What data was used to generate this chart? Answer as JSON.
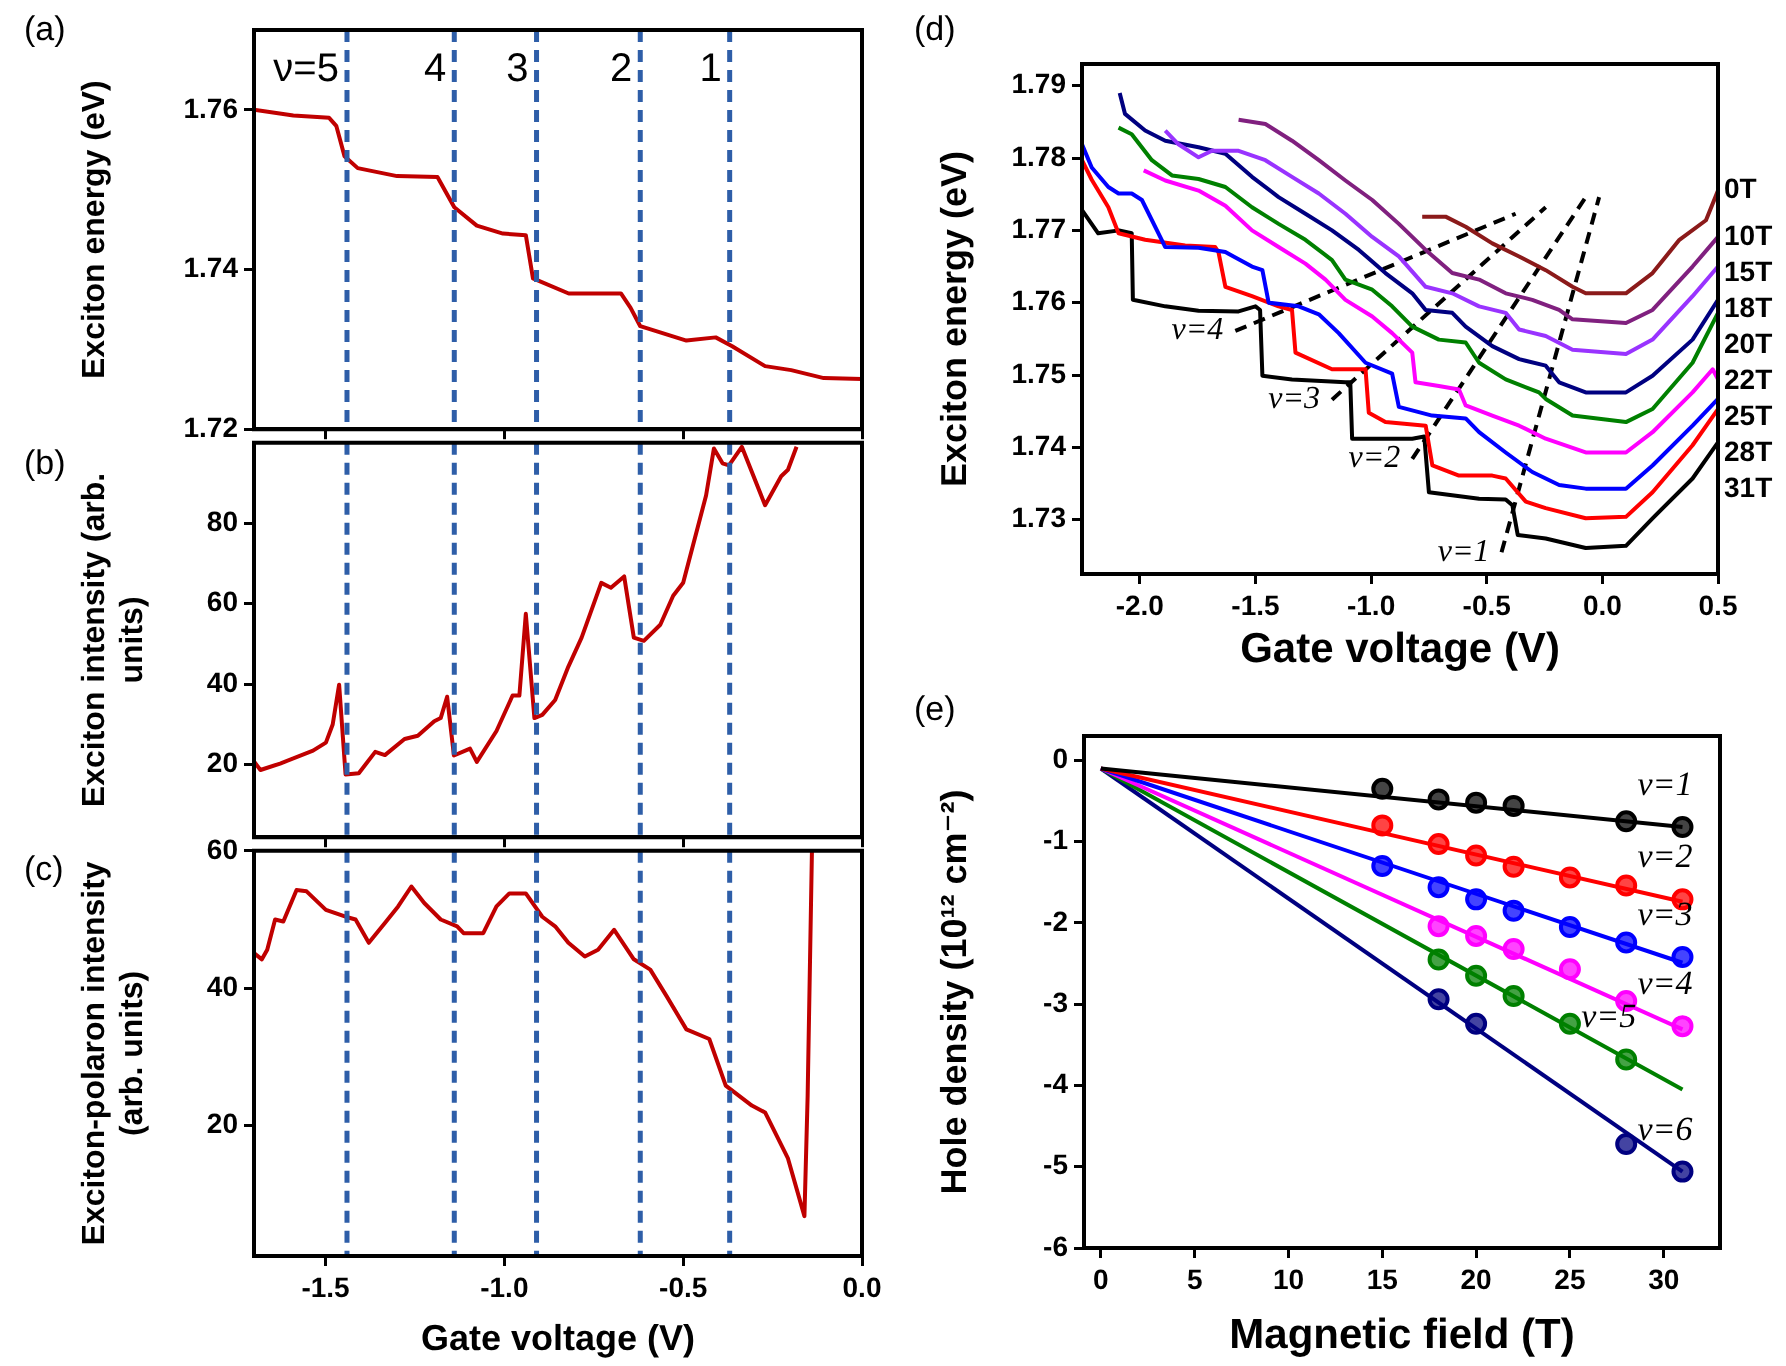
{
  "chart_data": [
    {
      "type": "line",
      "title": "(a)",
      "ylabel": "Exciton energy (eV)",
      "xlim": [
        -1.7,
        0
      ],
      "ylim": [
        1.72,
        1.77
      ],
      "xticks": [
        -1.5,
        -1,
        -0.5,
        0
      ],
      "yticks": [
        1.72,
        1.74,
        1.76
      ],
      "tick_labels": "y",
      "color": "#c00000",
      "x": [
        -1.7,
        -1.59,
        -1.49,
        -1.47,
        -1.447,
        -1.41,
        -1.3,
        -1.187,
        -1.14,
        -1.077,
        -1.004,
        -0.94,
        -0.92,
        -0.82,
        -0.674,
        -0.647,
        -0.62,
        -0.491,
        -0.409,
        -0.363,
        -0.271,
        -0.198,
        -0.107,
        0
      ],
      "values": [
        1.76,
        1.7593,
        1.759,
        1.758,
        1.7542,
        1.7527,
        1.7517,
        1.7516,
        1.7478,
        1.7455,
        1.7445,
        1.7443,
        1.7389,
        1.737,
        1.737,
        1.7352,
        1.7329,
        1.7311,
        1.7315,
        1.7304,
        1.7279,
        1.7274,
        1.7264,
        1.7263
      ],
      "ref_lines": [
        {
          "axis": "x",
          "value": -1.44,
          "color": "#2e5ea8",
          "line_style": "dashed"
        },
        {
          "axis": "x",
          "value": -1.14,
          "color": "#2e5ea8",
          "line_style": "dashed"
        },
        {
          "axis": "x",
          "value": -0.91,
          "color": "#2e5ea8",
          "line_style": "dashed"
        },
        {
          "axis": "x",
          "value": -0.62,
          "color": "#2e5ea8",
          "line_style": "dashed"
        },
        {
          "axis": "x",
          "value": -0.37,
          "color": "#2e5ea8",
          "line_style": "dashed"
        }
      ],
      "annotations": [
        {
          "text": "ν=5",
          "x": -1.44,
          "y": 1.767
        },
        {
          "text": "4",
          "x": -1.14,
          "y": 1.767
        },
        {
          "text": "3",
          "x": -0.91,
          "y": 1.767
        },
        {
          "text": "2",
          "x": -0.62,
          "y": 1.767
        },
        {
          "text": "1",
          "x": -0.37,
          "y": 1.767
        }
      ]
    },
    {
      "type": "line",
      "title": "(b)",
      "ylabel": "Exciton intensity (arb. units)",
      "xlim": [
        -1.7,
        0
      ],
      "ylim": [
        2,
        100
      ],
      "xticks": [
        -1.5,
        -1,
        -0.5,
        0
      ],
      "yticks": [
        20,
        40,
        60,
        80
      ],
      "tick_labels": "y",
      "color": "#c00000",
      "x": [
        -1.7,
        -1.682,
        -1.627,
        -1.535,
        -1.499,
        -1.48,
        -1.462,
        -1.444,
        -1.407,
        -1.361,
        -1.334,
        -1.279,
        -1.242,
        -1.196,
        -1.178,
        -1.16,
        -1.141,
        -1.096,
        -1.077,
        -1.022,
        -0.977,
        -0.958,
        -0.94,
        -0.916,
        -0.894,
        -0.858,
        -0.821,
        -0.784,
        -0.729,
        -0.702,
        -0.665,
        -0.638,
        -0.61,
        -0.564,
        -0.528,
        -0.5,
        -0.436,
        -0.414,
        -0.39,
        -0.372,
        -0.336,
        -0.271,
        -0.226,
        -0.207,
        -0.183
      ],
      "values": [
        20.8,
        18.7,
        20.3,
        23.5,
        25.5,
        30,
        39.9,
        17.6,
        17.9,
        23.2,
        22.4,
        26.4,
        27.2,
        30.8,
        31.6,
        36.9,
        22.3,
        24,
        20.7,
        28.4,
        37.2,
        37.2,
        57.5,
        31.6,
        32.4,
        36.1,
        44.4,
        51.6,
        65.2,
        64,
        66.8,
        51.6,
        50.8,
        54.8,
        62,
        65.2,
        86.9,
        98.6,
        94.9,
        94.4,
        99,
        84.5,
        91.7,
        93.3,
        99
      ],
      "ref_lines": [
        {
          "axis": "x",
          "value": -1.44,
          "color": "#2e5ea8",
          "line_style": "dashed"
        },
        {
          "axis": "x",
          "value": -1.14,
          "color": "#2e5ea8",
          "line_style": "dashed"
        },
        {
          "axis": "x",
          "value": -0.91,
          "color": "#2e5ea8",
          "line_style": "dashed"
        },
        {
          "axis": "x",
          "value": -0.62,
          "color": "#2e5ea8",
          "line_style": "dashed"
        },
        {
          "axis": "x",
          "value": -0.37,
          "color": "#2e5ea8",
          "line_style": "dashed"
        }
      ]
    },
    {
      "type": "line",
      "title": "(c)",
      "xlabel": "Gate voltage (V)",
      "ylabel": "Exciton-polaron intensity (arb. units)",
      "xlim": [
        -1.7,
        0
      ],
      "ylim": [
        1,
        60
      ],
      "xticks": [
        -1.5,
        {
          "value": -1,
          "label": "-1.0"
        },
        -0.5,
        {
          "value": 0,
          "label": "0.0"
        }
      ],
      "yticks": [
        20,
        40,
        60
      ],
      "color": "#c00000",
      "x": [
        -1.7,
        -1.678,
        -1.663,
        -1.641,
        -1.618,
        -1.581,
        -1.553,
        -1.499,
        -1.444,
        -1.416,
        -1.379,
        -1.334,
        -1.297,
        -1.26,
        -1.224,
        -1.178,
        -1.132,
        -1.114,
        -1.059,
        -1.022,
        -0.986,
        -0.94,
        -0.894,
        -0.858,
        -0.821,
        -0.775,
        -0.738,
        -0.693,
        -0.638,
        -0.592,
        -0.546,
        -0.491,
        -0.427,
        -0.381,
        -0.308,
        -0.271,
        -0.207,
        -0.161,
        -0.152,
        -0.14
      ],
      "values": [
        45.1,
        44.2,
        45.6,
        50,
        49.7,
        54.3,
        54.1,
        51.4,
        50.4,
        50,
        46.6,
        49.5,
        51.9,
        54.8,
        52.4,
        50,
        49,
        48,
        48,
        51.9,
        53.8,
        53.8,
        50.4,
        49,
        46.6,
        44.6,
        45.6,
        48.5,
        44.2,
        42.7,
        38.8,
        34,
        32.6,
        25.8,
        22.9,
        21.9,
        15.2,
        6.8,
        24.3,
        59.9
      ],
      "ref_lines": [
        {
          "axis": "x",
          "value": -1.44,
          "color": "#2e5ea8",
          "line_style": "dashed"
        },
        {
          "axis": "x",
          "value": -1.14,
          "color": "#2e5ea8",
          "line_style": "dashed"
        },
        {
          "axis": "x",
          "value": -0.91,
          "color": "#2e5ea8",
          "line_style": "dashed"
        },
        {
          "axis": "x",
          "value": -0.62,
          "color": "#2e5ea8",
          "line_style": "dashed"
        },
        {
          "axis": "x",
          "value": -0.37,
          "color": "#2e5ea8",
          "line_style": "dashed"
        }
      ]
    },
    {
      "type": "line",
      "title": "(d)",
      "xlabel": "Gate voltage (V)",
      "ylabel": "Exciton energy (eV)",
      "xlim": [
        -2.25,
        0.5
      ],
      "ylim": [
        1.7225,
        1.793
      ],
      "xticks": [
        {
          "value": -2,
          "label": "-2.0"
        },
        -1.5,
        {
          "value": -1,
          "label": "-1.0"
        },
        -0.5,
        {
          "value": 0,
          "label": "0.0"
        },
        0.5
      ],
      "yticks": [
        1.73,
        1.74,
        1.75,
        1.76,
        1.77,
        1.78,
        1.79
      ],
      "series": [
        {
          "name": "0T",
          "color": "#8b1a1a",
          "x": [
            -0.779,
            -0.678,
            -0.591,
            -0.476,
            -0.36,
            -0.245,
            -0.129,
            -0.072,
            0.102,
            0.217,
            0.333,
            0.448,
            0.5
          ],
          "values": [
            1.7719,
            1.7719,
            1.7705,
            1.7682,
            1.7664,
            1.7645,
            1.7622,
            1.7613,
            1.7613,
            1.7641,
            1.7687,
            1.7714,
            1.7755
          ]
        },
        {
          "name": "10T",
          "color": "#80207f",
          "x": [
            -1.573,
            -1.457,
            -1.342,
            -1.226,
            -1.111,
            -0.995,
            -0.88,
            -0.764,
            -0.649,
            -0.533,
            -0.418,
            -0.303,
            -0.187,
            -0.129,
            0.102,
            0.217,
            0.39,
            0.5
          ],
          "values": [
            1.7853,
            1.7847,
            1.7824,
            1.7797,
            1.7769,
            1.7742,
            1.7709,
            1.7673,
            1.7641,
            1.7632,
            1.7613,
            1.7604,
            1.759,
            1.7577,
            1.7572,
            1.759,
            1.765,
            1.7691
          ]
        },
        {
          "name": "15T",
          "color": "#9933ff",
          "x": [
            -1.89,
            -1.833,
            -1.746,
            -1.688,
            -1.573,
            -1.457,
            -1.342,
            -1.226,
            -1.111,
            -0.995,
            -0.88,
            -0.764,
            -0.649,
            -0.533,
            -0.418,
            -0.36,
            -0.245,
            -0.129,
            0.102,
            0.217,
            0.39,
            0.5
          ],
          "values": [
            1.7838,
            1.7819,
            1.7801,
            1.781,
            1.781,
            1.7797,
            1.7774,
            1.7751,
            1.7723,
            1.7691,
            1.7664,
            1.7622,
            1.7613,
            1.7595,
            1.7586,
            1.7563,
            1.7554,
            1.7535,
            1.7529,
            1.7549,
            1.7609,
            1.765
          ]
        },
        {
          "name": "18T",
          "color": "#000080",
          "x": [
            -2.087,
            -2.064,
            -1.977,
            -1.89,
            -1.746,
            -1.63,
            -1.515,
            -1.4,
            -1.284,
            -1.169,
            -1.053,
            -0.938,
            -0.822,
            -0.764,
            -0.649,
            -0.591,
            -0.476,
            -0.36,
            -0.245,
            -0.187,
            -0.072,
            0.102,
            0.217,
            0.39,
            0.5
          ],
          "values": [
            1.789,
            1.7861,
            1.7838,
            1.7824,
            1.7815,
            1.7806,
            1.7774,
            1.7746,
            1.7723,
            1.77,
            1.7673,
            1.7641,
            1.7613,
            1.759,
            1.7586,
            1.7567,
            1.754,
            1.7522,
            1.7513,
            1.749,
            1.7476,
            1.7476,
            1.7499,
            1.7549,
            1.7604
          ]
        },
        {
          "name": "20T",
          "color": "#008000",
          "x": [
            -2.092,
            -2.035,
            -1.948,
            -1.861,
            -1.746,
            -1.63,
            -1.515,
            -1.4,
            -1.284,
            -1.169,
            -1.111,
            -0.995,
            -0.909,
            -0.822,
            -0.707,
            -0.591,
            -0.533,
            -0.418,
            -0.274,
            -0.245,
            -0.129,
            0.102,
            0.217,
            0.39,
            0.5
          ],
          "values": [
            1.7842,
            1.7833,
            1.7797,
            1.7776,
            1.7771,
            1.776,
            1.7732,
            1.7709,
            1.7687,
            1.7659,
            1.7632,
            1.7618,
            1.7595,
            1.7567,
            1.7549,
            1.7545,
            1.7517,
            1.7494,
            1.7476,
            1.7467,
            1.7444,
            1.7435,
            1.7453,
            1.7517,
            1.7586
          ]
        },
        {
          "name": "22T",
          "color": "#ff00ff",
          "x": [
            -1.983,
            -1.89,
            -1.746,
            -1.63,
            -1.515,
            -1.4,
            -1.284,
            -1.197,
            -1.111,
            -0.995,
            -0.909,
            -0.851,
            -0.822,
            -0.808,
            -0.707,
            -0.62,
            -0.591,
            -0.476,
            -0.36,
            -0.245,
            -0.072,
            0.102,
            0.217,
            0.39,
            0.477,
            0.5
          ],
          "values": [
            1.7783,
            1.7769,
            1.7755,
            1.7734,
            1.77,
            1.7677,
            1.7654,
            1.7632,
            1.7604,
            1.7581,
            1.7558,
            1.754,
            1.7531,
            1.749,
            1.7485,
            1.748,
            1.7458,
            1.7444,
            1.743,
            1.7412,
            1.7393,
            1.7393,
            1.7421,
            1.7476,
            1.7508,
            1.7494
          ]
        },
        {
          "name": "25T",
          "color": "#0000ff",
          "x": [
            -2.25,
            -2.208,
            -2.136,
            -2.092,
            -2.035,
            -1.991,
            -1.89,
            -1.746,
            -1.63,
            -1.515,
            -1.47,
            -1.443,
            -1.313,
            -1.226,
            -1.14,
            -1.024,
            -0.909,
            -0.88,
            -0.736,
            -0.591,
            -0.533,
            -0.418,
            -0.303,
            -0.187,
            -0.072,
            0.102,
            0.217,
            0.39,
            0.5
          ],
          "values": [
            1.7819,
            1.7787,
            1.776,
            1.7751,
            1.7751,
            1.7742,
            1.7677,
            1.7676,
            1.767,
            1.765,
            1.7645,
            1.76,
            1.7595,
            1.7584,
            1.7558,
            1.7517,
            1.7502,
            1.7456,
            1.7444,
            1.744,
            1.7421,
            1.7393,
            1.7366,
            1.7348,
            1.7343,
            1.7343,
            1.7375,
            1.743,
            1.7467
          ]
        },
        {
          "name": "28T",
          "color": "#ff0000",
          "x": [
            -2.25,
            -2.208,
            -2.136,
            -2.092,
            -1.977,
            -1.804,
            -1.674,
            -1.66,
            -1.63,
            -1.515,
            -1.4,
            -1.342,
            -1.327,
            -1.169,
            -1.024,
            -1.01,
            -0.938,
            -0.764,
            -0.735,
            -0.62,
            -0.476,
            -0.418,
            -0.331,
            -0.245,
            -0.072,
            0.102,
            0.217,
            0.39,
            0.5
          ],
          "values": [
            1.7797,
            1.777,
            1.7732,
            1.7696,
            1.7687,
            1.7679,
            1.7677,
            1.767,
            1.7622,
            1.7609,
            1.7595,
            1.759,
            1.7531,
            1.7508,
            1.7508,
            1.7448,
            1.7435,
            1.743,
            1.7375,
            1.7361,
            1.7361,
            1.7357,
            1.7325,
            1.7316,
            1.7302,
            1.7304,
            1.7338,
            1.7403,
            1.7453
          ]
        },
        {
          "name": "31T",
          "color": "#000000",
          "x": [
            -2.25,
            -2.18,
            -2.09,
            -2.035,
            -2.03,
            -1.89,
            -1.746,
            -1.573,
            -1.5,
            -1.48,
            -1.47,
            -1.342,
            -1.111,
            -1.09,
            -1.082,
            -0.822,
            -0.77,
            -0.75,
            -0.533,
            -0.418,
            -0.389,
            -0.366,
            -0.245,
            -0.072,
            0.102,
            0.217,
            0.39,
            0.5
          ],
          "values": [
            1.7728,
            1.7696,
            1.77,
            1.7696,
            1.7604,
            1.7595,
            1.7589,
            1.7588,
            1.7595,
            1.759,
            1.7499,
            1.7494,
            1.749,
            1.749,
            1.7412,
            1.7412,
            1.7415,
            1.7338,
            1.7329,
            1.7328,
            1.732,
            1.7279,
            1.7274,
            1.7261,
            1.7264,
            1.7302,
            1.7357,
            1.7407
          ]
        },
        {
          "type": "line",
          "color": "#000000",
          "line_style": "dashed",
          "x": [
            -1.587,
            -0.375
          ],
          "values": [
            1.7561,
            1.7723
          ]
        },
        {
          "type": "line",
          "color": "#000000",
          "line_style": "dashed",
          "x": [
            -1.169,
            -0.245
          ],
          "values": [
            1.7466,
            1.7732
          ]
        },
        {
          "type": "line",
          "color": "#000000",
          "line_style": "dashed",
          "x": [
            -0.822,
            -0.072
          ],
          "values": [
            1.7384,
            1.7746
          ]
        },
        {
          "type": "line",
          "color": "#000000",
          "line_style": "dashed",
          "x": [
            -0.436,
            -0.014
          ],
          "values": [
            1.7255,
            1.7746
          ]
        }
      ],
      "annotations": [
        {
          "text": "ν=4",
          "x": -1.587,
          "y": 1.7561
        },
        {
          "text": "ν=3",
          "x": -1.169,
          "y": 1.7466
        },
        {
          "text": "ν=2",
          "x": -0.822,
          "y": 1.7384
        },
        {
          "text": "ν=1",
          "x": -0.436,
          "y": 1.7255
        }
      ]
    },
    {
      "type": "scatter",
      "title": "(e)",
      "xlabel": "Magnetic field (T)",
      "ylabel": "Hole density (10¹² cm⁻²)",
      "xlim": [
        -0.9,
        33
      ],
      "ylim": [
        -6,
        0.3
      ],
      "xticks": [
        0,
        5,
        10,
        15,
        20,
        25,
        30
      ],
      "yticks": [
        -6,
        -5,
        -4,
        -3,
        -2,
        -1,
        0
      ],
      "marker": "circle",
      "series": [
        {
          "type": "line",
          "marker": "none",
          "color": "#000000",
          "x": [
            0,
            31
          ],
          "values": [
            -0.1,
            -0.82
          ]
        },
        {
          "type": "line",
          "marker": "none",
          "color": "#ff0000",
          "x": [
            0,
            31
          ],
          "values": [
            -0.1,
            -1.74
          ]
        },
        {
          "type": "line",
          "marker": "none",
          "color": "#0000ff",
          "x": [
            0,
            31
          ],
          "values": [
            -0.1,
            -2.49
          ]
        },
        {
          "type": "line",
          "marker": "none",
          "color": "#ff00ff",
          "x": [
            0,
            31
          ],
          "values": [
            -0.1,
            -3.31
          ]
        },
        {
          "type": "line",
          "marker": "none",
          "color": "#008000",
          "x": [
            0,
            31
          ],
          "values": [
            -0.1,
            -4.05
          ]
        },
        {
          "type": "line",
          "marker": "none",
          "color": "#000080",
          "x": [
            0,
            31
          ],
          "values": [
            -0.1,
            -5.06
          ]
        },
        {
          "name": "ν=1",
          "color": "#000000",
          "x": [
            15,
            18,
            20,
            22,
            28,
            31
          ],
          "values": [
            -0.35,
            -0.48,
            -0.52,
            -0.56,
            -0.75,
            -0.82
          ]
        },
        {
          "name": "ν=2",
          "color": "#ff0000",
          "x": [
            15,
            18,
            20,
            22,
            25,
            28,
            31
          ],
          "values": [
            -0.8,
            -1.03,
            -1.17,
            -1.31,
            -1.44,
            -1.54,
            -1.71
          ]
        },
        {
          "name": "ν=3",
          "color": "#0000ff",
          "x": [
            15,
            18,
            20,
            22,
            25,
            28,
            31
          ],
          "values": [
            -1.3,
            -1.56,
            -1.71,
            -1.85,
            -2.05,
            -2.24,
            -2.42
          ]
        },
        {
          "name": "ν=4",
          "color": "#ff00ff",
          "x": [
            18,
            20,
            22,
            25,
            28,
            31
          ],
          "values": [
            -2.04,
            -2.16,
            -2.32,
            -2.57,
            -2.96,
            -3.27
          ]
        },
        {
          "name": "ν=5",
          "color": "#008000",
          "x": [
            18,
            20,
            22,
            25,
            28
          ],
          "values": [
            -2.45,
            -2.65,
            -2.9,
            -3.24,
            -3.68
          ]
        },
        {
          "name": "ν=6",
          "color": "#000080",
          "x": [
            18,
            20,
            28,
            31
          ],
          "values": [
            -2.94,
            -3.24,
            -4.72,
            -5.06
          ]
        }
      ]
    }
  ]
}
